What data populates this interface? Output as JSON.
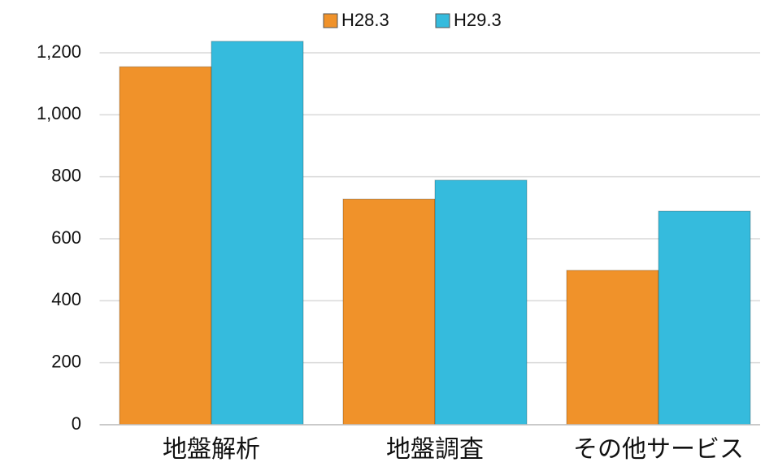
{
  "chart_data": {
    "type": "bar",
    "categories": [
      "地盤解析",
      "地盤調査",
      "その他サービス"
    ],
    "series": [
      {
        "name": "H28.3",
        "color": "#f0922a",
        "values": [
          1155,
          728,
          498
        ]
      },
      {
        "name": "H29.3",
        "color": "#35bbdd",
        "values": [
          1237,
          789,
          689
        ]
      }
    ],
    "ylim": [
      0,
      1200
    ],
    "yticks": [
      0,
      200,
      400,
      600,
      800,
      {
        "value": 1000,
        "label": "1,000"
      },
      {
        "value": 1200,
        "label": "1,200"
      }
    ],
    "grid": true,
    "legend": "top"
  }
}
